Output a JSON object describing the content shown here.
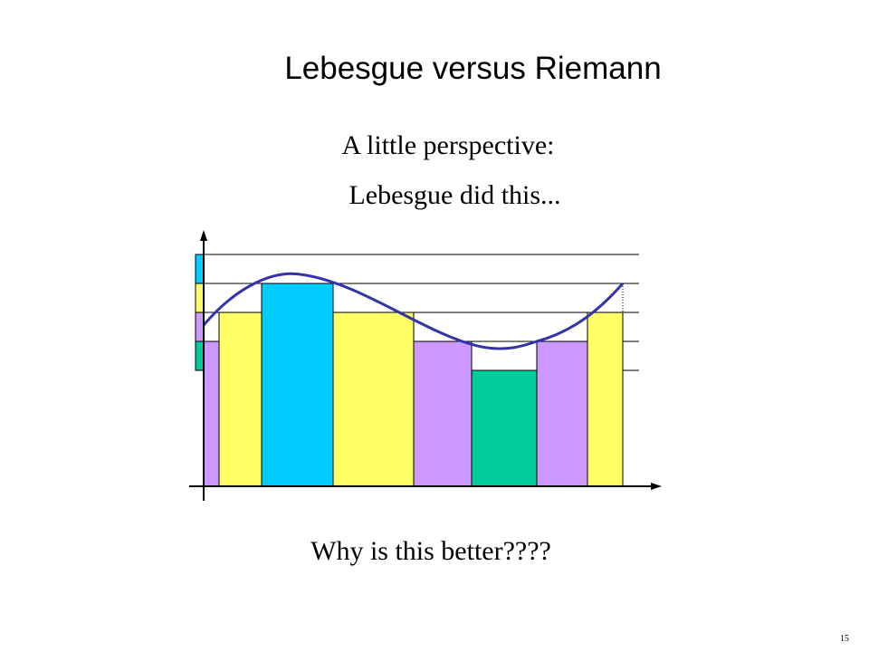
{
  "slide": {
    "title": "Lebesgue versus Riemann",
    "subtitle": "A little perspective:",
    "caption": "Lebesgue did this...",
    "question": "Why is this better????",
    "page_number": "15"
  },
  "colors": {
    "blue": "#00ccff",
    "yellow": "#ffff66",
    "purple": "#cc99ff",
    "green": "#00cc99",
    "curve": "#3333aa"
  }
}
